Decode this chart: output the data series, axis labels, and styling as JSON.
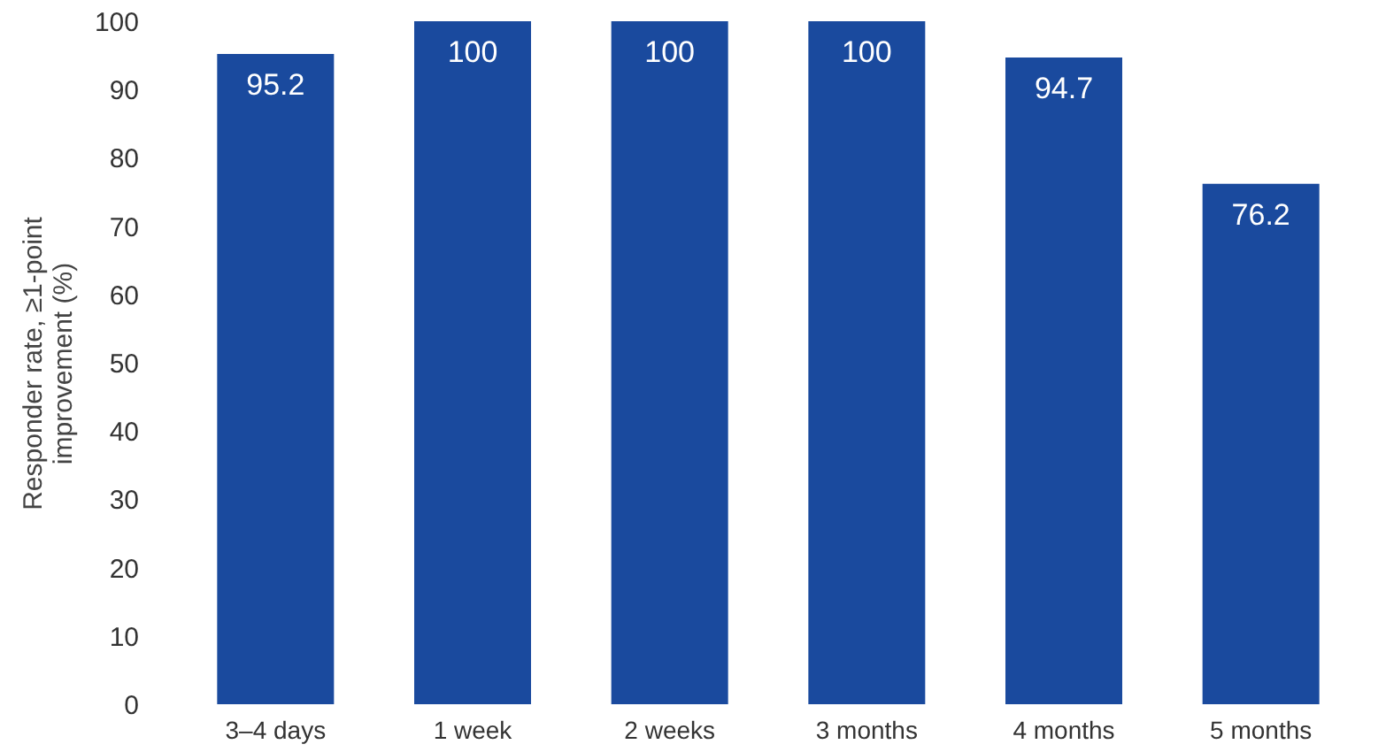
{
  "chart_data": {
    "type": "bar",
    "ylabel": "Responder rate, ≥1-point\nimprovement (%)",
    "categories": [
      "3–4 days",
      "1 week",
      "2 weeks",
      "3 months",
      "4 months",
      "5 months"
    ],
    "values": [
      95.2,
      100,
      100,
      100,
      94.7,
      76.2
    ],
    "color": "#1a4a9e",
    "ylim": [
      0,
      100
    ],
    "yticks": [
      0,
      10,
      20,
      30,
      40,
      50,
      60,
      70,
      80,
      90,
      100
    ],
    "grid": false,
    "data_labels": true
  }
}
